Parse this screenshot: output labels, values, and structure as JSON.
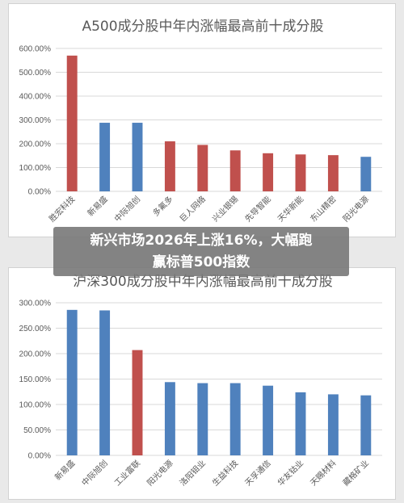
{
  "headline": {
    "line1": "新兴市场2026年上涨16%，大幅跑",
    "line2": "赢标普500指数"
  },
  "colors": {
    "blue": "#4f81bd",
    "red": "#c0504d",
    "grid": "#d9d9d9",
    "text": "#595959"
  },
  "chart_data": [
    {
      "type": "bar",
      "title": "A500成分股中年内涨幅最高前十成分股",
      "categories": [
        "胜宏科技",
        "新易盛",
        "中际旭创",
        "多氟多",
        "巨人网络",
        "兴业银锡",
        "先导智能",
        "天华新能",
        "东山精密",
        "阳光电源"
      ],
      "values": [
        570,
        288,
        288,
        210,
        195,
        172,
        160,
        155,
        152,
        145
      ],
      "bar_colors": [
        "red",
        "blue",
        "blue",
        "red",
        "red",
        "red",
        "red",
        "red",
        "red",
        "blue"
      ],
      "ylim": [
        0,
        600
      ],
      "yticks": [
        0,
        100,
        200,
        300,
        400,
        500,
        600
      ],
      "ytick_labels": [
        "0.00%",
        "100.00%",
        "200.00%",
        "300.00%",
        "400.00%",
        "500.00%",
        "600.00%"
      ],
      "grid": true,
      "xlabel": "",
      "ylabel": ""
    },
    {
      "type": "bar",
      "title": "沪深300成分股中年内涨幅最高前十成分股",
      "categories": [
        "新易盛",
        "中际旭创",
        "工业富联",
        "阳光电源",
        "洛阳钼业",
        "生益科技",
        "天孚通信",
        "华友钴业",
        "天赐材料",
        "藏格矿业"
      ],
      "values": [
        286,
        285,
        207,
        144,
        142,
        142,
        137,
        124,
        120,
        118
      ],
      "bar_colors": [
        "blue",
        "blue",
        "red",
        "blue",
        "blue",
        "blue",
        "blue",
        "blue",
        "blue",
        "blue"
      ],
      "ylim": [
        0,
        300
      ],
      "yticks": [
        0,
        50,
        100,
        150,
        200,
        250,
        300
      ],
      "ytick_labels": [
        "0.00%",
        "50.00%",
        "100.00%",
        "150.00%",
        "200.00%",
        "250.00%",
        "300.00%"
      ],
      "grid": true,
      "xlabel": "",
      "ylabel": ""
    }
  ]
}
